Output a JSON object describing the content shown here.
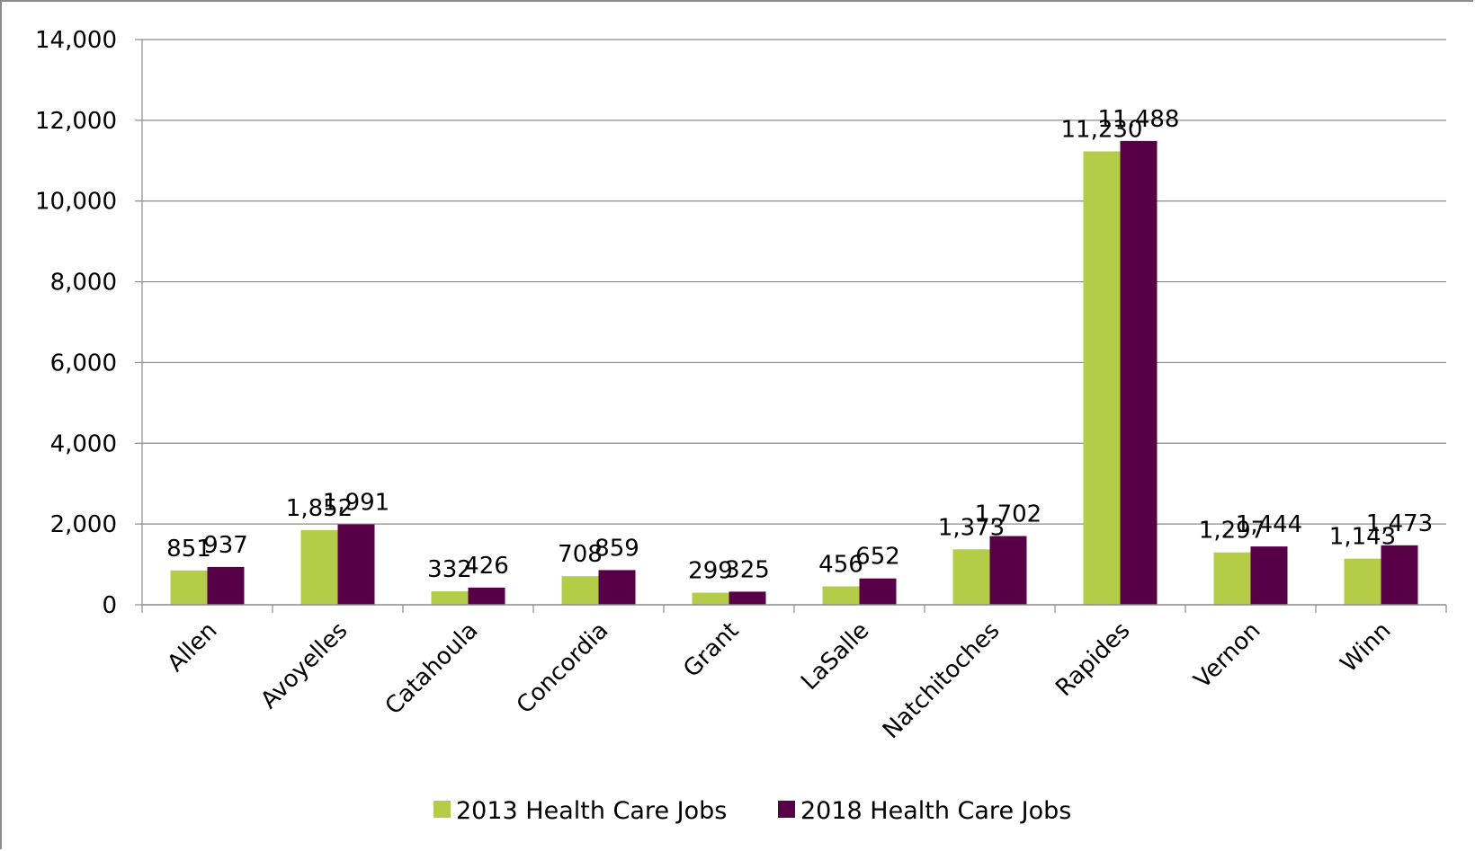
{
  "chart_data": {
    "type": "bar",
    "categories": [
      "Allen",
      "Avoyelles",
      "Catahoula",
      "Concordia",
      "Grant",
      "LaSalle",
      "Natchitoches",
      "Rapides",
      "Vernon",
      "Winn"
    ],
    "series": [
      {
        "name": "2013 Health Care Jobs",
        "color": "#b5cc48",
        "values": [
          851,
          1852,
          332,
          708,
          299,
          456,
          1373,
          11230,
          1297,
          1143
        ],
        "labels": [
          "851",
          "1,852",
          "332",
          "708",
          "299",
          "456",
          "1,373",
          "11,230",
          "1,297",
          "1,143"
        ]
      },
      {
        "name": "2018 Health Care Jobs",
        "color": "#570048",
        "values": [
          937,
          1991,
          426,
          859,
          325,
          652,
          1702,
          11488,
          1444,
          1473
        ],
        "labels": [
          "937",
          "1,991",
          "426",
          "859",
          "325",
          "652",
          "1,702",
          "11,488",
          "1,444",
          "1,473"
        ]
      }
    ],
    "ylim": [
      0,
      14000
    ],
    "yticks": [
      0,
      2000,
      4000,
      6000,
      8000,
      10000,
      12000,
      14000
    ],
    "ytick_labels": [
      "0",
      "2,000",
      "4,000",
      "6,000",
      "8,000",
      "10,000",
      "12,000",
      "14,000"
    ],
    "grid": true,
    "legend_position": "bottom-center"
  }
}
